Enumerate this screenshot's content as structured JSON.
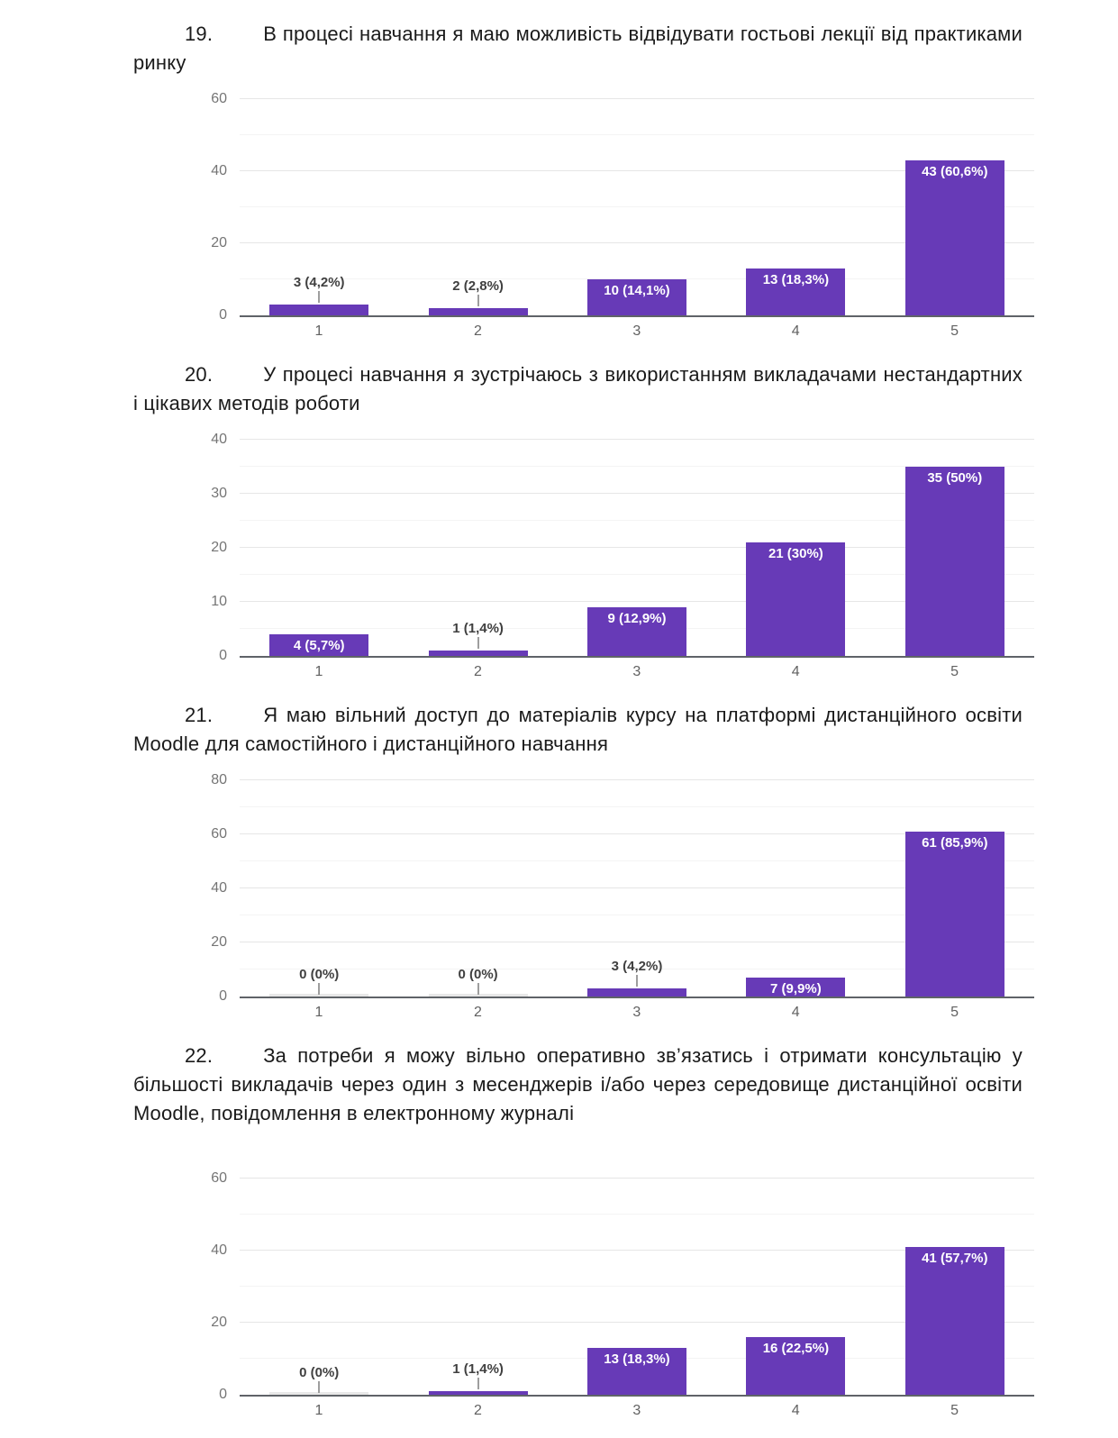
{
  "page": {
    "type": "survey-report-page",
    "background": "#ffffff",
    "text_color": "#1a1a1a"
  },
  "document": {
    "sections": [
      {
        "number": "19.",
        "text": "В процесі навчання я маю можливість відвідувати гостьові лекції від практиками ринку"
      },
      {
        "number": "20.",
        "text": "У процесі навчання я зустрічаюсь з використанням викладачами нестандартних і цікавих методів роботи"
      },
      {
        "number": "21.",
        "text": "Я маю вільний доступ до матеріалів курсу на платформі дистанційного освіти Moodle для самостійного і дистанційного навчання"
      },
      {
        "number": "22.",
        "text": "За потреби я можу вільно оперативно зв’язатись і отримати консультацію у більшості викладачів через один з месенджерів і/або через середовище дистанційної освіти Moodle, повідомлення в електронному журналі"
      }
    ]
  },
  "chart_data": [
    {
      "type": "bar",
      "title": "",
      "xlabel": "",
      "ylabel": "",
      "categories": [
        "1",
        "2",
        "3",
        "4",
        "5"
      ],
      "values": [
        3,
        2,
        10,
        13,
        43
      ],
      "bar_labels": [
        "3 (4,2%)",
        "2 (2,8%)",
        "10 (14,1%)",
        "13 (18,3%)",
        "43 (60,6%)"
      ],
      "label_inside": [
        false,
        false,
        true,
        true,
        true
      ],
      "ylim": [
        0,
        60
      ],
      "yticks": [
        0,
        20,
        40,
        60
      ],
      "minor_gridline_step": 10,
      "grid": true,
      "legend": "none"
    },
    {
      "type": "bar",
      "title": "",
      "xlabel": "",
      "ylabel": "",
      "categories": [
        "1",
        "2",
        "3",
        "4",
        "5"
      ],
      "values": [
        4,
        1,
        9,
        21,
        35
      ],
      "bar_labels": [
        "4 (5,7%)",
        "1 (1,4%)",
        "9 (12,9%)",
        "21 (30%)",
        "35 (50%)"
      ],
      "label_inside": [
        true,
        false,
        true,
        true,
        true
      ],
      "ylim": [
        0,
        40
      ],
      "yticks": [
        0,
        10,
        20,
        30,
        40
      ],
      "minor_gridline_step": 5,
      "grid": true,
      "legend": "none"
    },
    {
      "type": "bar",
      "title": "",
      "xlabel": "",
      "ylabel": "",
      "categories": [
        "1",
        "2",
        "3",
        "4",
        "5"
      ],
      "values": [
        0,
        0,
        3,
        7,
        61
      ],
      "bar_labels": [
        "0 (0%)",
        "0 (0%)",
        "3 (4,2%)",
        "7 (9,9%)",
        "61 (85,9%)"
      ],
      "label_inside": [
        false,
        false,
        false,
        true,
        true
      ],
      "ylim": [
        0,
        80
      ],
      "yticks": [
        0,
        20,
        40,
        60,
        80
      ],
      "minor_gridline_step": 10,
      "grid": true,
      "legend": "none"
    },
    {
      "type": "bar",
      "title": "",
      "xlabel": "",
      "ylabel": "",
      "categories": [
        "1",
        "2",
        "3",
        "4",
        "5"
      ],
      "values": [
        0,
        1,
        13,
        16,
        41
      ],
      "bar_labels": [
        "0 (0%)",
        "1 (1,4%)",
        "13 (18,3%)",
        "16 (22,5%)",
        "41 (57,7%)"
      ],
      "label_inside": [
        false,
        false,
        true,
        true,
        true
      ],
      "ylim": [
        0,
        60
      ],
      "yticks": [
        0,
        20,
        40,
        60
      ],
      "minor_gridline_step": 10,
      "grid": true,
      "legend": "none"
    }
  ],
  "chart_style": {
    "bar_color": "#673ab7",
    "zero_bar_color": "#e8e8e8",
    "axis_line_color": "#5f6368",
    "gridline_major_color": "#e6e6e6",
    "gridline_minor_color": "#f4f4f4",
    "ytick_label_color": "#757575",
    "xtick_label_color": "#616161",
    "annotation_inside_color": "#ffffff",
    "annotation_outside_color": "#404040",
    "connector_color": "#9e9e9e"
  }
}
